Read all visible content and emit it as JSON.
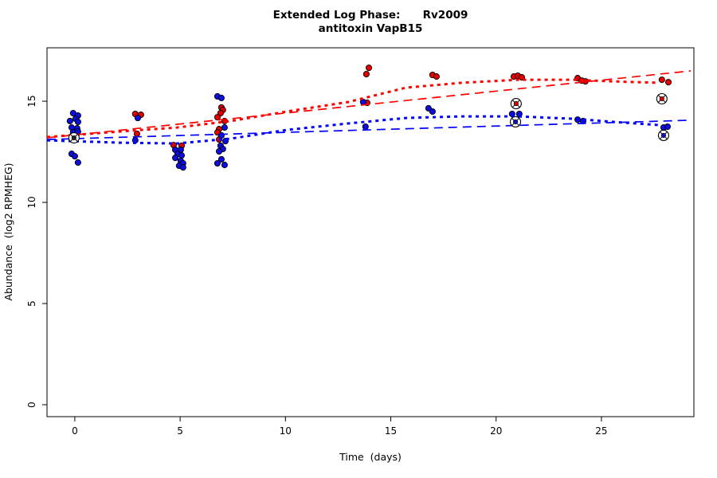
{
  "chart_data": {
    "type": "scatter",
    "title": "Extended Log Phase:      Rv2009",
    "subtitle": "antitoxin VapB15",
    "xlabel": "Time  (days)",
    "ylabel": "Abundance  (log2 RPMHEG)",
    "xlim": [
      -1.32,
      29.39
    ],
    "ylim": [
      -0.59,
      17.64
    ],
    "x_ticks": [
      0,
      5,
      10,
      15,
      20,
      25
    ],
    "y_ticks": [
      0,
      5,
      10,
      15
    ],
    "grid": false,
    "legend": "none",
    "point_stroke": "#000000",
    "series": [
      {
        "name": "red-scatter",
        "kind": "points",
        "color": "#e00000",
        "points": [
          [
            0.08,
            13.35
          ],
          [
            2.87,
            14.37
          ],
          [
            3.14,
            14.33
          ],
          [
            2.95,
            13.39
          ],
          [
            4.69,
            12.83
          ],
          [
            5.07,
            12.8
          ],
          [
            6.96,
            14.69
          ],
          [
            7.03,
            14.57
          ],
          [
            6.92,
            14.41
          ],
          [
            6.77,
            14.21
          ],
          [
            7.11,
            14.02
          ],
          [
            6.85,
            13.62
          ],
          [
            6.77,
            13.46
          ],
          [
            6.85,
            13.11
          ],
          [
            13.96,
            16.65
          ],
          [
            13.84,
            16.34
          ],
          [
            13.88,
            14.92
          ],
          [
            16.98,
            16.3
          ],
          [
            17.17,
            16.22
          ],
          [
            20.84,
            16.22
          ],
          [
            21.03,
            16.26
          ],
          [
            21.22,
            16.18
          ],
          [
            23.87,
            16.14
          ],
          [
            24.06,
            16.02
          ],
          [
            24.24,
            15.98
          ],
          [
            27.87,
            16.06
          ],
          [
            28.18,
            15.94
          ]
        ]
      },
      {
        "name": "blue-scatter",
        "kind": "points",
        "color": "#0d0de0",
        "points": [
          [
            -0.08,
            14.41
          ],
          [
            0.15,
            14.29
          ],
          [
            -0.23,
            14.02
          ],
          [
            0.04,
            14.13
          ],
          [
            0.15,
            13.98
          ],
          [
            -0.15,
            13.7
          ],
          [
            0.11,
            13.66
          ],
          [
            -0.08,
            13.46
          ],
          [
            0.15,
            13.5
          ],
          [
            -0.15,
            12.4
          ],
          [
            0.0,
            12.28
          ],
          [
            0.15,
            11.97
          ],
          [
            2.99,
            14.17
          ],
          [
            2.87,
            13.07
          ],
          [
            4.77,
            12.6
          ],
          [
            5.03,
            12.6
          ],
          [
            4.88,
            12.4
          ],
          [
            5.07,
            12.32
          ],
          [
            4.77,
            12.2
          ],
          [
            5.03,
            12.05
          ],
          [
            5.14,
            11.93
          ],
          [
            4.95,
            11.81
          ],
          [
            5.14,
            11.73
          ],
          [
            6.77,
            15.24
          ],
          [
            6.96,
            15.16
          ],
          [
            7.11,
            13.7
          ],
          [
            6.96,
            13.31
          ],
          [
            7.15,
            13.03
          ],
          [
            6.92,
            12.8
          ],
          [
            7.03,
            12.64
          ],
          [
            6.85,
            12.52
          ],
          [
            6.96,
            12.13
          ],
          [
            6.77,
            11.93
          ],
          [
            7.11,
            11.85
          ],
          [
            13.69,
            14.96
          ],
          [
            13.8,
            13.74
          ],
          [
            16.79,
            14.65
          ],
          [
            16.98,
            14.49
          ],
          [
            20.76,
            14.37
          ],
          [
            21.1,
            14.37
          ],
          [
            23.87,
            14.09
          ],
          [
            24.13,
            14.02
          ],
          [
            27.95,
            13.7
          ],
          [
            28.14,
            13.74
          ]
        ]
      },
      {
        "name": "red-loess-fit",
        "kind": "line",
        "color": "#ff0000",
        "dash": "dotted",
        "points": [
          [
            -1.32,
            13.23
          ],
          [
            2.12,
            13.5
          ],
          [
            4.84,
            13.7
          ],
          [
            7.41,
            14.02
          ],
          [
            10.06,
            14.49
          ],
          [
            12.97,
            14.96
          ],
          [
            15.73,
            15.67
          ],
          [
            18.38,
            15.91
          ],
          [
            21.03,
            16.06
          ],
          [
            23.68,
            16.06
          ],
          [
            25.57,
            15.98
          ],
          [
            27.72,
            15.91
          ]
        ]
      },
      {
        "name": "red-linear-fit",
        "kind": "line",
        "color": "#ff0000",
        "dash": "longdash",
        "points": [
          [
            -1.32,
            13.19
          ],
          [
            29.24,
            16.5
          ]
        ]
      },
      {
        "name": "blue-loess-fit",
        "kind": "line",
        "color": "#0000ff",
        "dash": "dotted",
        "points": [
          [
            -1.32,
            13.07
          ],
          [
            2.12,
            12.95
          ],
          [
            4.84,
            12.91
          ],
          [
            7.41,
            13.15
          ],
          [
            10.06,
            13.58
          ],
          [
            12.97,
            13.9
          ],
          [
            15.73,
            14.17
          ],
          [
            18.38,
            14.25
          ],
          [
            21.03,
            14.25
          ],
          [
            23.68,
            14.13
          ],
          [
            25.57,
            13.98
          ],
          [
            27.72,
            13.82
          ]
        ]
      },
      {
        "name": "blue-linear-fit",
        "kind": "line",
        "color": "#0000ff",
        "dash": "longdash",
        "points": [
          [
            -1.32,
            13.11
          ],
          [
            29.24,
            14.06
          ]
        ]
      }
    ],
    "outlier_markers": [
      {
        "t": -0.04,
        "v": 13.19,
        "dot_color": "#222222"
      },
      {
        "t": 20.95,
        "v": 14.88,
        "dot_color": "#e00000"
      },
      {
        "t": 20.92,
        "v": 13.98,
        "dot_color": "#0d0de0"
      },
      {
        "t": 27.87,
        "v": 15.12,
        "dot_color": "#e00000"
      },
      {
        "t": 27.95,
        "v": 13.31,
        "dot_color": "#0d0de0"
      }
    ]
  }
}
